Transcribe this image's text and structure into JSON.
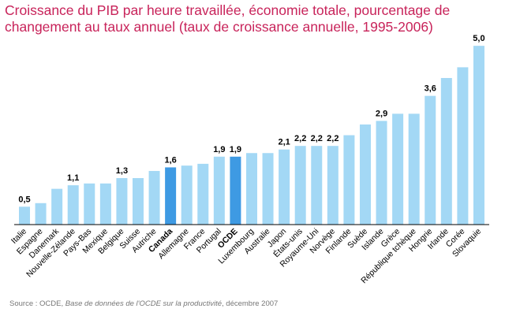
{
  "title": {
    "line1": "Croissance du PIB par heure travaillée, économie totale, pourcentage de",
    "line2": "changement au taux annuel (taux de croissance annuelle, 1995-2006)"
  },
  "source": {
    "prefix": "Source : OCDE, ",
    "database": "Base de données de l'OCDE sur la productivité",
    "suffix": ", décembre 2007"
  },
  "colors": {
    "bar": "#a3d8f5",
    "highlight": "#3e9ae3",
    "axis": "#000000",
    "title": "#c8235a"
  },
  "chart_data": {
    "type": "bar",
    "ylim": [
      0,
      5.4
    ],
    "grid": false,
    "legend": "none",
    "categories": [
      "Italie",
      "Espagne",
      "Danemark",
      "Nouvelle-Zélande",
      "Pays-Bas",
      "Mexique",
      "Belgique",
      "Suisse",
      "Autriche",
      "Canada",
      "Allemagne",
      "France",
      "Portugal",
      "OCDE",
      "Luxembourg",
      "Australie",
      "Japon",
      "États-unis",
      "Royaume-Uni",
      "Norvège",
      "Finlande",
      "Suède",
      "Islande",
      "Grèce",
      "République tchèque",
      "Hongrie",
      "Irlande",
      "Corée",
      "Slovaquie"
    ],
    "values": [
      0.5,
      0.6,
      1.0,
      1.1,
      1.15,
      1.15,
      1.3,
      1.3,
      1.5,
      1.6,
      1.65,
      1.7,
      1.9,
      1.9,
      2.0,
      2.0,
      2.1,
      2.2,
      2.2,
      2.2,
      2.5,
      2.8,
      2.9,
      3.1,
      3.1,
      3.6,
      4.1,
      4.4,
      5.0
    ],
    "data_labels": [
      "0,5",
      "",
      "",
      "1,1",
      "",
      "",
      "1,3",
      "",
      "",
      "1,6",
      "",
      "",
      "1,9",
      "1,9",
      "",
      "",
      "2,1",
      "2,2",
      "2,2",
      "2,2",
      "",
      "",
      "2,9",
      "",
      "",
      "3,6",
      "",
      "",
      "5,0"
    ],
    "highlighted": [
      "Canada",
      "OCDE"
    ]
  }
}
